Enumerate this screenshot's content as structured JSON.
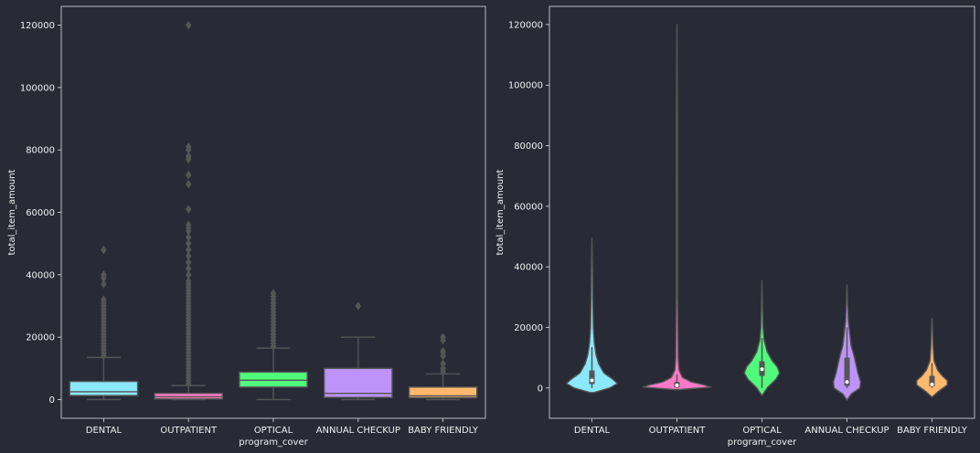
{
  "colors": {
    "background": "#282a36",
    "axes_edge": "#e0e0e0",
    "text": "#f0f0f0",
    "line": "#555555",
    "outlier": "#555555"
  },
  "chart_data": [
    {
      "type": "box",
      "xlabel": "program_cover",
      "ylabel": "total_item_amount",
      "ylim": [
        -6000,
        126000
      ],
      "yticks": [
        0,
        20000,
        40000,
        60000,
        80000,
        100000,
        120000
      ],
      "grid": false,
      "categories": [
        "DENTAL",
        "OUTPATIENT",
        "OPTICAL",
        "ANNUAL CHECKUP",
        "BABY FRIENDLY"
      ],
      "palette": [
        "#8be9fd",
        "#ff79c6",
        "#50fa7b",
        "#bd93f9",
        "#ffb86c"
      ],
      "boxes": [
        {
          "min": 0,
          "q1": 1300,
          "median": 2500,
          "q3": 5800,
          "max": 13500,
          "outliers": [
            14000,
            15000,
            16000,
            17000,
            18000,
            19000,
            20000,
            21000,
            22000,
            23000,
            24000,
            25000,
            26000,
            27000,
            28000,
            29000,
            30000,
            31000,
            32000,
            37000,
            39000,
            40000,
            48000
          ]
        },
        {
          "min": 0,
          "q1": 200,
          "median": 900,
          "q3": 2000,
          "max": 4500,
          "outliers": [
            5000,
            6000,
            7000,
            8000,
            9000,
            10000,
            11000,
            12000,
            13000,
            14000,
            15000,
            16000,
            17000,
            18000,
            19000,
            20000,
            21000,
            22000,
            23000,
            24000,
            25000,
            26000,
            27000,
            28000,
            29000,
            30000,
            31000,
            32000,
            33000,
            34000,
            35000,
            36000,
            37000,
            38000,
            40000,
            42000,
            44000,
            46000,
            48000,
            50000,
            52000,
            54000,
            55000,
            56000,
            61000,
            69000,
            72000,
            77000,
            78000,
            80000,
            81000,
            120000
          ]
        },
        {
          "min": 0,
          "q1": 4000,
          "median": 6200,
          "q3": 8800,
          "max": 16500,
          "outliers": [
            17000,
            18000,
            19000,
            20000,
            21000,
            22000,
            23000,
            24000,
            25000,
            26000,
            27000,
            28000,
            29000,
            30000,
            31000,
            32000,
            33000,
            34000
          ]
        },
        {
          "min": 0,
          "q1": 700,
          "median": 2000,
          "q3": 10000,
          "max": 20000,
          "outliers": [
            30000
          ]
        },
        {
          "min": 0,
          "q1": 600,
          "median": 1200,
          "q3": 4000,
          "max": 8200,
          "outliers": [
            9000,
            10000,
            11500,
            14000,
            15000,
            15500,
            19000,
            20000
          ]
        }
      ]
    },
    {
      "type": "violin",
      "xlabel": "program_cover",
      "ylabel": "total_item_amount",
      "ylim": [
        -10000,
        126000
      ],
      "yticks": [
        0,
        20000,
        40000,
        60000,
        80000,
        100000,
        120000
      ],
      "grid": false,
      "categories": [
        "DENTAL",
        "OUTPATIENT",
        "OPTICAL",
        "ANNUAL CHECKUP",
        "BABY FRIENDLY"
      ],
      "palette": [
        "#8be9fd",
        "#ff79c6",
        "#50fa7b",
        "#bd93f9",
        "#ffb86c"
      ],
      "violins": [
        {
          "profile": [
            [
              -1500,
              0.06
            ],
            [
              0,
              0.52
            ],
            [
              1500,
              0.75
            ],
            [
              3000,
              0.6
            ],
            [
              5000,
              0.35
            ],
            [
              8000,
              0.2
            ],
            [
              11000,
              0.12
            ],
            [
              15000,
              0.07
            ],
            [
              20000,
              0.04
            ],
            [
              30000,
              0.025
            ],
            [
              40000,
              0.02
            ],
            [
              49500,
              0.0
            ]
          ],
          "box": {
            "q1": 1300,
            "median": 2500,
            "q3": 5800,
            "lo": 0,
            "hi": 13500
          }
        },
        {
          "profile": [
            [
              -500,
              0.1
            ],
            [
              300,
              1.0
            ],
            [
              1000,
              0.8
            ],
            [
              2000,
              0.42
            ],
            [
              3500,
              0.16
            ],
            [
              6000,
              0.06
            ],
            [
              10000,
              0.035
            ],
            [
              30000,
              0.02
            ],
            [
              60000,
              0.018
            ],
            [
              90000,
              0.015
            ],
            [
              120000,
              0.0
            ]
          ],
          "box": {
            "q1": 200,
            "median": 900,
            "q3": 2000,
            "lo": 0,
            "hi": 4500
          }
        },
        {
          "profile": [
            [
              -2500,
              0.0
            ],
            [
              0,
              0.15
            ],
            [
              3000,
              0.42
            ],
            [
              5000,
              0.52
            ],
            [
              7000,
              0.45
            ],
            [
              9000,
              0.3
            ],
            [
              12000,
              0.15
            ],
            [
              16000,
              0.06
            ],
            [
              20000,
              0.03
            ],
            [
              26000,
              0.02
            ],
            [
              35500,
              0.0
            ]
          ],
          "box": {
            "q1": 4000,
            "median": 6200,
            "q3": 8800,
            "lo": 0,
            "hi": 16500
          }
        },
        {
          "profile": [
            [
              -4000,
              0.0
            ],
            [
              -2000,
              0.12
            ],
            [
              0,
              0.38
            ],
            [
              2000,
              0.4
            ],
            [
              5000,
              0.32
            ],
            [
              8000,
              0.26
            ],
            [
              11000,
              0.2
            ],
            [
              14000,
              0.12
            ],
            [
              18000,
              0.08
            ],
            [
              22000,
              0.04
            ],
            [
              28000,
              0.02
            ],
            [
              34000,
              0.0
            ]
          ],
          "box": {
            "q1": 700,
            "median": 2000,
            "q3": 10000,
            "lo": 0,
            "hi": 20000
          }
        },
        {
          "profile": [
            [
              -3000,
              0.0
            ],
            [
              -1000,
              0.2
            ],
            [
              1000,
              0.45
            ],
            [
              2500,
              0.45
            ],
            [
              4000,
              0.3
            ],
            [
              6000,
              0.16
            ],
            [
              9000,
              0.06
            ],
            [
              14000,
              0.03
            ],
            [
              19000,
              0.02
            ],
            [
              23000,
              0.0
            ]
          ],
          "box": {
            "q1": 600,
            "median": 1200,
            "q3": 4000,
            "lo": 0,
            "hi": 8200
          }
        }
      ]
    }
  ]
}
